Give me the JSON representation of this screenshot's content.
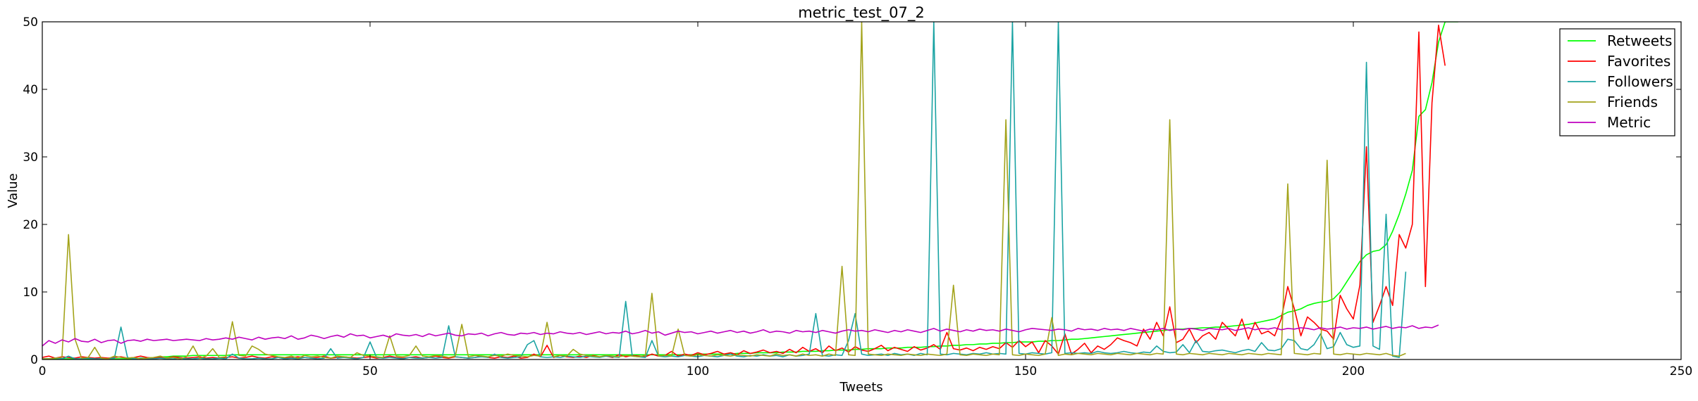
{
  "chart_data": {
    "type": "line",
    "title": "metric_test_07_2",
    "xlabel": "Tweets",
    "ylabel": "Value",
    "xlim": [
      0,
      250
    ],
    "ylim": [
      0,
      50
    ],
    "xticks": [
      0,
      50,
      100,
      150,
      200,
      250
    ],
    "yticks": [
      0,
      10,
      20,
      30,
      40,
      50
    ],
    "legend_position": "top-right",
    "series": [
      {
        "name": "Retweets",
        "color": "#00ff00",
        "values": [
          0.1,
          0.1,
          0.1,
          0.1,
          0.1,
          0.1,
          0.1,
          0.1,
          0.1,
          0.1,
          0.1,
          0.1,
          0.1,
          0.1,
          0.1,
          0.2,
          0.2,
          0.3,
          0.4,
          0.4,
          0.5,
          0.5,
          0.5,
          0.6,
          0.6,
          0.6,
          0.6,
          0.6,
          0.6,
          0.7,
          0.7,
          0.7,
          0.7,
          0.7,
          0.7,
          0.7,
          0.7,
          0.7,
          0.7,
          0.7,
          0.7,
          0.7,
          0.7,
          0.7,
          0.7,
          0.7,
          0.7,
          0.7,
          0.7,
          0.7,
          0.7,
          0.7,
          0.7,
          0.7,
          0.7,
          0.7,
          0.7,
          0.7,
          0.7,
          0.7,
          0.7,
          0.7,
          0.7,
          0.7,
          0.7,
          0.7,
          0.7,
          0.7,
          0.7,
          0.7,
          0.7,
          0.7,
          0.7,
          0.7,
          0.7,
          0.7,
          0.7,
          0.7,
          0.7,
          0.7,
          0.7,
          0.7,
          0.7,
          0.7,
          0.7,
          0.7,
          0.7,
          0.7,
          0.7,
          0.7,
          0.7,
          0.7,
          0.7,
          0.7,
          0.7,
          0.7,
          0.7,
          0.7,
          0.7,
          0.7,
          0.8,
          0.8,
          0.8,
          0.8,
          0.8,
          0.8,
          0.9,
          0.9,
          0.9,
          1.0,
          1.0,
          1.0,
          1.0,
          1.1,
          1.1,
          1.1,
          1.2,
          1.2,
          1.2,
          1.3,
          1.3,
          1.4,
          1.4,
          1.4,
          1.5,
          1.5,
          1.6,
          1.6,
          1.6,
          1.7,
          1.7,
          1.7,
          1.8,
          1.8,
          1.8,
          1.9,
          1.9,
          2.0,
          2.0,
          2.1,
          2.1,
          2.2,
          2.2,
          2.3,
          2.3,
          2.4,
          2.4,
          2.5,
          2.5,
          2.6,
          2.6,
          2.6,
          2.7,
          2.7,
          2.8,
          2.8,
          2.9,
          3.0,
          3.0,
          3.1,
          3.2,
          3.3,
          3.4,
          3.5,
          3.6,
          3.7,
          3.8,
          3.9,
          4.0,
          4.1,
          4.2,
          4.3,
          4.4,
          4.5,
          4.5,
          4.6,
          4.6,
          4.7,
          4.7,
          4.8,
          4.8,
          4.9,
          5.0,
          5.1,
          5.2,
          5.4,
          5.6,
          5.8,
          6.0,
          6.5,
          7.0,
          7.2,
          7.5,
          8.0,
          8.3,
          8.5,
          8.6,
          9.0,
          10.0,
          11.5,
          13.0,
          14.5,
          15.5,
          16.0,
          16.2,
          17.0,
          19.0,
          21.5,
          24.5,
          28.0,
          36.0,
          37.0,
          41.0,
          47.0,
          50.0,
          50.0,
          50.0
        ]
      },
      {
        "name": "Favorites",
        "color": "#ff0000",
        "values": [
          0.3,
          0.5,
          0.2,
          0.4,
          0.3,
          0.2,
          0.4,
          0.3,
          0.2,
          0.3,
          0.2,
          0.3,
          0.4,
          0.2,
          0.3,
          0.5,
          0.3,
          0.2,
          0.3,
          0.2,
          0.4,
          0.3,
          0.2,
          0.3,
          0.4,
          0.2,
          0.3,
          0.2,
          0.3,
          0.4,
          0.2,
          0.3,
          0.5,
          0.3,
          0.2,
          0.4,
          0.3,
          0.2,
          0.3,
          0.4,
          0.3,
          0.2,
          0.3,
          0.5,
          0.2,
          0.3,
          0.4,
          0.3,
          0.2,
          0.3,
          0.4,
          0.2,
          0.3,
          0.5,
          0.3,
          0.2,
          0.3,
          0.4,
          0.2,
          0.3,
          0.5,
          0.3,
          0.2,
          0.4,
          0.3,
          0.2,
          0.3,
          0.5,
          0.3,
          0.2,
          0.4,
          0.3,
          0.5,
          0.2,
          0.3,
          0.8,
          0.4,
          2.1,
          0.3,
          0.6,
          0.4,
          0.3,
          0.5,
          0.3,
          0.6,
          0.4,
          0.5,
          0.3,
          0.7,
          0.4,
          0.6,
          0.5,
          0.4,
          0.8,
          0.5,
          0.6,
          1.2,
          0.5,
          0.8,
          0.6,
          1.0,
          0.7,
          0.9,
          1.2,
          0.8,
          1.0,
          0.7,
          1.3,
          0.9,
          1.1,
          1.4,
          1.0,
          1.2,
          0.9,
          1.5,
          1.0,
          1.8,
          1.2,
          1.6,
          1.0,
          2.0,
          1.3,
          1.7,
          1.1,
          1.9,
          1.4,
          1.2,
          1.6,
          2.1,
          1.3,
          1.8,
          1.5,
          1.2,
          1.9,
          1.4,
          1.7,
          2.2,
          1.5,
          4.0,
          1.6,
          1.4,
          1.7,
          1.3,
          1.8,
          1.5,
          1.9,
          1.6,
          2.5,
          1.8,
          2.8,
          1.9,
          2.6,
          1.0,
          2.8,
          2.0,
          0.8,
          3.8,
          0.8,
          1.5,
          2.4,
          1.0,
          2.0,
          1.5,
          2.2,
          3.2,
          2.8,
          2.5,
          2.0,
          4.5,
          3.0,
          5.5,
          3.5,
          7.8,
          2.5,
          3.0,
          4.5,
          2.5,
          3.5,
          4.0,
          3.0,
          5.5,
          4.5,
          3.5,
          6.0,
          3.0,
          5.5,
          3.8,
          4.2,
          3.5,
          6.0,
          10.8,
          7.5,
          3.5,
          6.3,
          5.5,
          4.5,
          4.2,
          3.0,
          9.5,
          7.5,
          6.0,
          11.0,
          31.5,
          5.5,
          8.0,
          10.8,
          8.0,
          18.5,
          16.5,
          20.0,
          48.5,
          10.8,
          38.0,
          49.5,
          43.5
        ]
      },
      {
        "name": "Followers",
        "color": "#1aa3a3",
        "values": [
          0.1,
          0.1,
          0.2,
          0.1,
          0.5,
          0.1,
          0.1,
          0.2,
          0.1,
          0.1,
          0.1,
          0.2,
          4.8,
          0.3,
          0.1,
          0.2,
          0.1,
          0.1,
          0.2,
          0.1,
          0.1,
          0.2,
          0.1,
          0.1,
          0.2,
          0.1,
          0.1,
          0.2,
          0.1,
          0.8,
          0.2,
          0.1,
          0.1,
          0.2,
          0.1,
          0.1,
          0.3,
          0.1,
          0.2,
          0.1,
          0.3,
          0.2,
          0.1,
          0.2,
          1.6,
          0.2,
          0.3,
          0.2,
          0.1,
          0.3,
          2.6,
          0.3,
          0.2,
          0.3,
          0.2,
          0.1,
          0.3,
          0.2,
          0.2,
          0.3,
          0.2,
          0.3,
          5.0,
          0.4,
          0.3,
          0.2,
          0.3,
          0.4,
          0.3,
          0.8,
          0.3,
          0.2,
          0.3,
          0.4,
          2.2,
          2.8,
          0.4,
          0.3,
          0.4,
          0.3,
          0.5,
          0.4,
          0.3,
          0.5,
          0.4,
          0.3,
          0.5,
          0.4,
          0.3,
          8.6,
          0.5,
          0.4,
          0.3,
          2.8,
          0.5,
          0.4,
          0.5,
          0.4,
          0.6,
          0.5,
          0.4,
          0.6,
          0.5,
          0.4,
          0.6,
          0.8,
          0.5,
          0.4,
          0.6,
          0.5,
          0.7,
          0.5,
          0.6,
          0.4,
          0.7,
          0.5,
          0.6,
          0.8,
          6.8,
          0.6,
          0.5,
          0.7,
          0.6,
          2.8,
          6.8,
          0.8,
          0.6,
          0.7,
          0.8,
          0.6,
          0.9,
          0.7,
          0.8,
          0.6,
          0.9,
          0.7,
          50.0,
          0.8,
          0.7,
          0.9,
          0.8,
          0.7,
          0.9,
          0.8,
          1.0,
          0.8,
          0.9,
          0.8,
          50.0,
          0.9,
          0.8,
          1.0,
          0.9,
          0.8,
          1.0,
          50.0,
          0.9,
          1.0,
          0.9,
          1.0,
          0.9,
          1.2,
          1.0,
          0.9,
          1.0,
          1.2,
          1.0,
          0.9,
          1.1,
          1.0,
          2.0,
          1.2,
          1.0,
          1.1,
          2.2,
          1.0,
          2.8,
          1.2,
          1.1,
          1.3,
          1.4,
          1.2,
          1.0,
          1.3,
          1.5,
          1.2,
          2.5,
          1.4,
          1.3,
          1.6,
          3.0,
          2.8,
          1.6,
          1.4,
          2.2,
          3.8,
          1.6,
          1.9,
          4.0,
          2.2,
          1.8,
          2.0,
          44.0,
          2.0,
          1.5,
          21.5,
          0.5,
          0.3,
          13.0
        ]
      },
      {
        "name": "Friends",
        "color": "#a3a31a",
        "values": [
          0.1,
          0.1,
          0.2,
          0.3,
          18.5,
          3.0,
          0.2,
          0.3,
          1.8,
          0.2,
          0.1,
          0.5,
          0.3,
          0.2,
          0.3,
          0.1,
          0.2,
          0.3,
          0.5,
          0.2,
          0.3,
          0.1,
          0.4,
          2.0,
          0.2,
          0.5,
          1.6,
          0.3,
          0.4,
          5.6,
          0.6,
          0.5,
          2.0,
          1.5,
          0.8,
          0.6,
          0.4,
          0.3,
          0.5,
          0.2,
          0.6,
          0.4,
          0.5,
          0.3,
          0.2,
          0.5,
          0.4,
          0.3,
          1.0,
          0.6,
          0.5,
          0.4,
          0.3,
          3.5,
          0.5,
          0.4,
          0.6,
          2.0,
          0.5,
          0.4,
          0.6,
          0.5,
          0.3,
          0.5,
          5.2,
          0.4,
          0.6,
          0.5,
          0.4,
          0.6,
          0.5,
          0.8,
          0.6,
          0.5,
          0.4,
          0.6,
          0.5,
          5.5,
          0.4,
          0.6,
          0.5,
          1.5,
          0.8,
          0.6,
          0.5,
          0.4,
          0.6,
          0.5,
          0.4,
          0.6,
          0.5,
          0.4,
          0.6,
          9.8,
          0.5,
          0.6,
          0.5,
          4.5,
          0.6,
          0.5,
          0.7,
          0.6,
          0.5,
          0.7,
          0.6,
          0.5,
          0.7,
          0.6,
          0.5,
          0.7,
          0.6,
          0.5,
          0.8,
          0.6,
          0.7,
          0.5,
          0.8,
          0.6,
          0.7,
          0.5,
          0.8,
          0.6,
          13.8,
          0.7,
          0.6,
          50.0,
          0.8,
          0.7,
          0.6,
          0.8,
          0.7,
          0.6,
          0.8,
          0.7,
          0.6,
          0.8,
          0.7,
          0.6,
          0.8,
          11.0,
          0.7,
          0.6,
          0.8,
          0.7,
          0.6,
          0.8,
          0.7,
          35.5,
          0.7,
          0.6,
          0.8,
          0.7,
          0.6,
          0.8,
          6.2,
          0.6,
          0.8,
          0.7,
          0.9,
          0.8,
          0.7,
          0.9,
          0.8,
          0.7,
          0.9,
          0.8,
          0.7,
          0.9,
          0.8,
          0.7,
          0.9,
          0.8,
          35.5,
          0.8,
          0.7,
          0.9,
          0.8,
          0.7,
          0.9,
          0.8,
          0.7,
          0.9,
          0.8,
          0.7,
          0.9,
          0.8,
          0.7,
          0.9,
          0.8,
          0.7,
          26.0,
          0.9,
          0.8,
          0.7,
          0.9,
          0.8,
          29.5,
          0.8,
          0.7,
          0.9,
          0.8,
          0.7,
          0.9,
          0.8,
          0.7,
          0.9,
          0.6,
          0.5,
          0.9
        ]
      },
      {
        "name": "Metric",
        "color": "#bf00bf",
        "values": [
          2.0,
          2.8,
          2.4,
          2.9,
          2.6,
          3.1,
          2.7,
          2.6,
          3.0,
          2.5,
          2.8,
          2.9,
          2.4,
          2.8,
          2.9,
          2.7,
          3.0,
          2.8,
          2.9,
          3.0,
          2.8,
          2.9,
          3.0,
          2.9,
          2.8,
          3.1,
          2.9,
          3.0,
          3.2,
          3.0,
          3.3,
          3.1,
          2.9,
          3.3,
          3.0,
          3.2,
          3.3,
          3.1,
          3.5,
          3.0,
          3.2,
          3.6,
          3.4,
          3.1,
          3.4,
          3.6,
          3.3,
          3.8,
          3.5,
          3.6,
          3.2,
          3.4,
          3.6,
          3.3,
          3.8,
          3.6,
          3.5,
          3.7,
          3.4,
          3.8,
          3.5,
          3.7,
          3.9,
          3.6,
          3.5,
          3.8,
          3.7,
          3.9,
          3.5,
          3.8,
          4.0,
          3.7,
          3.6,
          3.9,
          3.8,
          4.0,
          3.7,
          3.9,
          3.8,
          4.1,
          3.9,
          3.8,
          4.0,
          3.7,
          3.9,
          4.1,
          3.8,
          4.0,
          3.9,
          4.2,
          3.8,
          4.0,
          4.3,
          3.9,
          4.1,
          3.6,
          3.9,
          4.2,
          4.0,
          4.1,
          3.8,
          4.0,
          4.2,
          3.9,
          4.1,
          4.3,
          4.0,
          4.2,
          3.9,
          4.1,
          4.4,
          4.0,
          4.2,
          4.1,
          3.9,
          4.3,
          4.1,
          4.2,
          4.0,
          4.3,
          4.1,
          3.9,
          4.2,
          4.4,
          4.2,
          4.3,
          4.1,
          4.4,
          4.2,
          4.0,
          4.3,
          4.1,
          4.4,
          4.2,
          4.0,
          4.3,
          4.6,
          4.2,
          4.5,
          4.3,
          4.1,
          4.4,
          4.2,
          4.5,
          4.3,
          4.4,
          4.2,
          4.5,
          4.3,
          4.1,
          4.4,
          4.6,
          4.5,
          4.4,
          4.3,
          4.5,
          4.4,
          4.2,
          4.6,
          4.4,
          4.5,
          4.3,
          4.6,
          4.4,
          4.5,
          4.3,
          4.6,
          4.4,
          4.2,
          4.5,
          4.4,
          4.6,
          4.3,
          4.5,
          4.4,
          4.6,
          4.5,
          4.3,
          4.6,
          4.5,
          4.4,
          4.6,
          4.3,
          4.5,
          4.7,
          4.4,
          4.6,
          4.5,
          4.7,
          4.4,
          4.6,
          4.5,
          4.7,
          4.6,
          4.4,
          4.7,
          4.5,
          4.6,
          4.8,
          4.5,
          4.7,
          4.6,
          4.8,
          4.5,
          4.7,
          4.9,
          4.6,
          4.8,
          4.7,
          5.0,
          4.6,
          4.8,
          4.7,
          5.1
        ]
      }
    ]
  }
}
